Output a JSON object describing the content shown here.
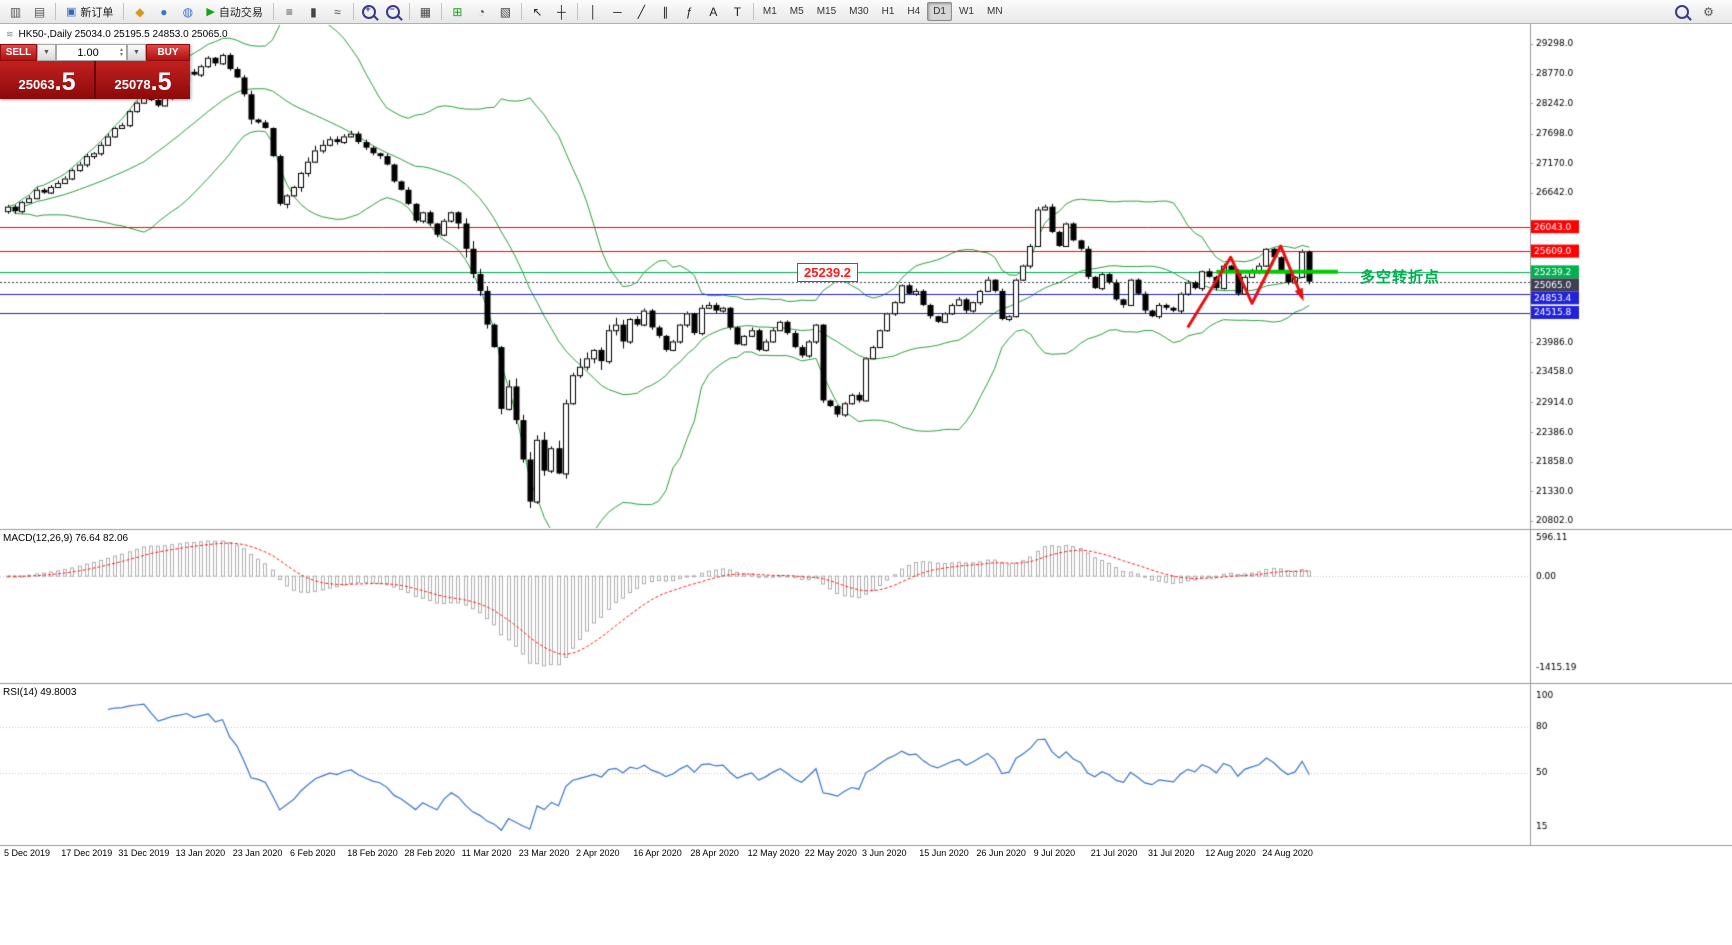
{
  "colors": {
    "resistance_red": "#ff0000",
    "support_blue": "#2222dd",
    "pivot_green": "#00b050",
    "pivot_bold_green": "#00cc00",
    "current_price_dark": "#3f3f52",
    "bollinger_green": "#2f9e44",
    "macd_signal_red": "#ff2020",
    "macd_hist_gray": "#b0b0b0",
    "rsi_blue": "#3b74d1",
    "trade_red": "#b01010",
    "zigzag_red": "#e81010"
  },
  "header": {
    "symbol_text": "HK50-,Daily  25034.0 25195.5 24853.0 25065.0"
  },
  "toolbar": {
    "items": [
      {
        "type": "icon",
        "name": "new-chart-icon",
        "glyph": "▥",
        "color": "#555"
      },
      {
        "type": "icon",
        "name": "profiles-icon",
        "glyph": "▤",
        "color": "#555"
      },
      {
        "type": "sep"
      },
      {
        "type": "button",
        "name": "new-order-button",
        "glyph": "▣",
        "glyph_color": "#3566b0",
        "label": "新订单"
      },
      {
        "type": "sep"
      },
      {
        "type": "icon",
        "name": "coin-icon",
        "glyph": "◆",
        "color": "#d49a17"
      },
      {
        "type": "icon",
        "name": "community-icon",
        "glyph": "●",
        "color": "#3b74d1"
      },
      {
        "type": "icon",
        "name": "market-icon",
        "glyph": "◍",
        "color": "#3b74d1"
      },
      {
        "type": "button",
        "name": "autotrading-button",
        "glyph": "▶",
        "glyph_color": "#17a317",
        "label": "自动交易"
      },
      {
        "type": "sep"
      },
      {
        "type": "icon",
        "name": "ohlc-bars-icon",
        "glyph": "≡",
        "color": "#444"
      },
      {
        "type": "icon",
        "name": "candlestick-icon",
        "glyph": "▮",
        "color": "#444"
      },
      {
        "type": "icon",
        "name": "line-chart-icon",
        "glyph": "≈",
        "color": "#444"
      },
      {
        "type": "sep"
      },
      {
        "type": "mag",
        "name": "zoom-in-icon",
        "sign": "+"
      },
      {
        "type": "mag",
        "name": "zoom-out-icon",
        "sign": "−"
      },
      {
        "type": "sep"
      },
      {
        "type": "icon",
        "name": "tile-windows-icon",
        "glyph": "▦",
        "color": "#444"
      },
      {
        "type": "sep"
      },
      {
        "type": "icon",
        "name": "indicators-icon",
        "glyph": "⊞",
        "color": "#1ca11c"
      },
      {
        "type": "icon",
        "name": "periods-icon",
        "glyph": "◔",
        "color": "#444"
      },
      {
        "type": "icon",
        "name": "templates-icon",
        "glyph": "▧",
        "color": "#444"
      },
      {
        "type": "sep"
      },
      {
        "type": "icon",
        "name": "cursor-icon",
        "glyph": "↖",
        "color": "#222"
      },
      {
        "type": "icon",
        "name": "crosshair-icon",
        "glyph": "┼",
        "color": "#222"
      },
      {
        "type": "sep"
      },
      {
        "type": "icon",
        "name": "vertical-line-icon",
        "glyph": "│",
        "color": "#222"
      },
      {
        "type": "icon",
        "name": "horizontal-line-icon",
        "glyph": "─",
        "color": "#222"
      },
      {
        "type": "icon",
        "name": "trendline-icon",
        "glyph": "╱",
        "color": "#222"
      },
      {
        "type": "icon",
        "name": "channel-icon",
        "glyph": "∥",
        "color": "#222"
      },
      {
        "type": "icon",
        "name": "fibonacci-icon",
        "glyph": "ƒ",
        "color": "#222"
      },
      {
        "type": "icon",
        "name": "text-icon",
        "glyph": "A",
        "color": "#222"
      },
      {
        "type": "icon",
        "name": "label-icon",
        "glyph": "T",
        "color": "#222"
      },
      {
        "type": "sep"
      }
    ],
    "timeframes": [
      {
        "label": "M1"
      },
      {
        "label": "M5"
      },
      {
        "label": "M15"
      },
      {
        "label": "M30"
      },
      {
        "label": "H1"
      },
      {
        "label": "H4"
      },
      {
        "label": "D1",
        "active": true
      },
      {
        "label": "W1"
      },
      {
        "label": "MN"
      }
    ],
    "right_items": [
      {
        "type": "mag",
        "name": "search-icon",
        "sign": ""
      },
      {
        "type": "icon",
        "name": "settings-icon",
        "glyph": "⚙",
        "color": "#555"
      }
    ]
  },
  "trade_panel": {
    "sell_label": "SELL",
    "buy_label": "BUY",
    "volume": "1.00",
    "sell_price_int": "25063",
    "sell_price_frac": ".5",
    "buy_price_int": "25078",
    "buy_price_frac": ".5"
  },
  "annotations": {
    "price_flag": "25239.2",
    "turning_point": "多空转折点"
  },
  "chart_data": {
    "type": "candlestick",
    "title": "HK50-,Daily",
    "ohlc_header": {
      "open": 25034.0,
      "high": 25195.5,
      "low": 24853.0,
      "close": 25065.0
    },
    "x_labels": [
      "5 Dec 2019",
      "17 Dec 2019",
      "31 Dec 2019",
      "13 Jan 2020",
      "23 Jan 2020",
      "6 Feb 2020",
      "18 Feb 2020",
      "28 Feb 2020",
      "11 Mar 2020",
      "23 Mar 2020",
      "2 Apr 2020",
      "16 Apr 2020",
      "28 Apr 2020",
      "12 May 2020",
      "22 May 2020",
      "3 Jun 2020",
      "15 Jun 2020",
      "26 Jun 2020",
      "9 Jul 2020",
      "21 Jul 2020",
      "31 Jul 2020",
      "12 Aug 2020",
      "24 Aug 2020"
    ],
    "main": {
      "ylim": [
        20680,
        29580
      ],
      "y_ticks": [
        29298.0,
        28770.0,
        28242.0,
        27698.0,
        27170.0,
        26642.0,
        23986.0,
        23458.0,
        22914.0,
        22386.0,
        21858.0,
        21330.0,
        20802.0
      ],
      "closes": [
        26400,
        26320,
        26480,
        26550,
        26700,
        26650,
        26750,
        26820,
        26900,
        27050,
        27150,
        27300,
        27350,
        27500,
        27650,
        27800,
        27850,
        28100,
        28250,
        28400,
        28300,
        28200,
        28350,
        28550,
        28650,
        28800,
        28750,
        28900,
        29050,
        28950,
        29100,
        28850,
        28700,
        28400,
        27950,
        27900,
        27800,
        27300,
        26450,
        26600,
        26750,
        27000,
        27200,
        27400,
        27500,
        27600,
        27550,
        27650,
        27700,
        27550,
        27450,
        27350,
        27300,
        27150,
        26850,
        26700,
        26450,
        26150,
        26300,
        26100,
        25900,
        26150,
        26300,
        26100,
        25650,
        25200,
        24900,
        24300,
        23900,
        22800,
        23200,
        22600,
        21900,
        21150,
        22250,
        21700,
        22100,
        21650,
        22900,
        23400,
        23550,
        23700,
        23850,
        23650,
        24200,
        24300,
        24000,
        24400,
        24300,
        24550,
        24250,
        24100,
        23850,
        24000,
        24300,
        24500,
        24150,
        24600,
        24650,
        24550,
        24600,
        24250,
        23950,
        24100,
        24200,
        23850,
        24000,
        24200,
        24350,
        24150,
        23900,
        23750,
        24000,
        24300,
        22950,
        22850,
        22700,
        22900,
        23050,
        22950,
        23700,
        23900,
        24200,
        24500,
        24700,
        25000,
        24850,
        24900,
        24650,
        24450,
        24350,
        24500,
        24650,
        24750,
        24550,
        24700,
        24900,
        25100,
        24900,
        24400,
        24450,
        25100,
        25350,
        25700,
        26350,
        26400,
        25950,
        25700,
        26100,
        25800,
        25650,
        25150,
        24950,
        25200,
        25050,
        24750,
        24650,
        25100,
        24850,
        24550,
        24450,
        24650,
        24600,
        24550,
        24850,
        25050,
        24950,
        25250,
        25150,
        24950,
        25350,
        25250,
        24850,
        25150,
        25250,
        25350,
        25650,
        25500,
        25250,
        25050,
        25150,
        25600,
        25065
      ],
      "bollinger": {
        "period": 20,
        "deviation": 2,
        "color": "#2f9e44"
      },
      "h_lines": [
        {
          "price": 26043.0,
          "label": "26043.0",
          "color": "#ff0000",
          "style": "solid"
        },
        {
          "price": 25609.0,
          "label": "25609.0",
          "color": "#ff0000",
          "style": "solid"
        },
        {
          "price": 25239.2,
          "label": "25239.2",
          "color": "#00b050",
          "style": "solid"
        },
        {
          "price": 25065.0,
          "label": "25065.0",
          "color": "#3f3f52",
          "style": "dot"
        },
        {
          "price": 24853.4,
          "label": "24853.4",
          "color": "#2222dd",
          "style": "solid"
        },
        {
          "price": 24515.8,
          "label": "24515.8",
          "color": "#2222dd",
          "style": "solid"
        }
      ],
      "bold_segment": {
        "price": 25239.2,
        "from_bar": 169,
        "to_bar": 186,
        "color": "#00cc00"
      },
      "zigzag": {
        "color": "#e81010",
        "points": [
          [
            165,
            24250
          ],
          [
            171,
            25500
          ],
          [
            174,
            24680
          ],
          [
            178,
            25700
          ],
          [
            181,
            24780
          ]
        ]
      }
    },
    "macd": {
      "label": "MACD(12,26,9) 76.64 82.06",
      "params": [
        12,
        26,
        9
      ],
      "current_main": 76.64,
      "current_signal": 82.06,
      "ylim": [
        -1600,
        650
      ],
      "y_ticks": [
        596.11,
        0.0,
        -1415.19
      ],
      "hist_color": "#b0b0b0",
      "signal_color": "#ff2020"
    },
    "rsi": {
      "label": "RSI(14) 49.8003",
      "period": 14,
      "current": 49.8003,
      "ylim": [
        6,
        104
      ],
      "y_ticks": [
        100,
        80,
        50,
        15
      ],
      "levels": [
        80,
        50
      ],
      "color": "#3b74d1"
    }
  }
}
